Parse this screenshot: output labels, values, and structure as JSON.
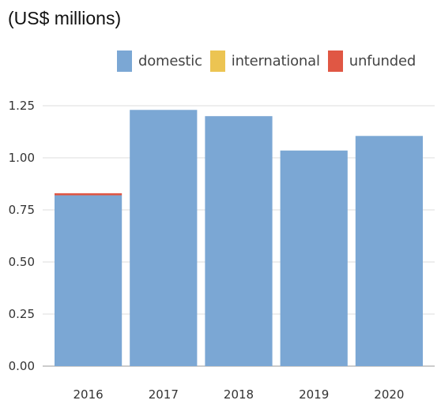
{
  "chart_data": {
    "type": "bar",
    "stacked": true,
    "title": "(US$ millions)",
    "xlabel": "",
    "ylabel": "",
    "categories": [
      "2016",
      "2017",
      "2018",
      "2019",
      "2020"
    ],
    "series": [
      {
        "name": "domestic",
        "color": "#7ba7d4",
        "values": [
          0.82,
          1.23,
          1.2,
          1.035,
          1.105
        ]
      },
      {
        "name": "international",
        "color": "#ecc452",
        "values": [
          0,
          0,
          0,
          0,
          0
        ]
      },
      {
        "name": "unfunded",
        "color": "#e05744",
        "values": [
          0.01,
          0,
          0,
          0,
          0
        ]
      }
    ],
    "ylim": [
      0,
      1.25
    ],
    "yticks": [
      "0.00",
      "0.25",
      "0.50",
      "0.75",
      "1.00",
      "1.25"
    ],
    "grid": true,
    "legend_position": "top"
  }
}
